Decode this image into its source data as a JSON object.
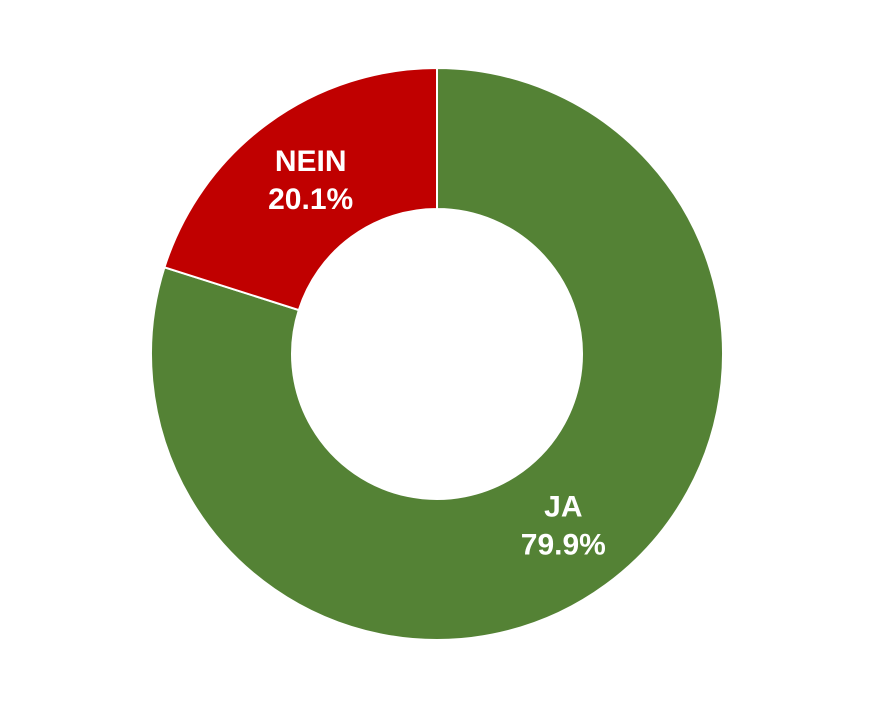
{
  "chart_data": {
    "type": "donut",
    "categories": [
      "JA",
      "NEIN"
    ],
    "values": [
      79.9,
      20.1
    ],
    "value_labels": [
      "79.9%",
      "20.1%"
    ],
    "colors": [
      "#548235",
      "#c00000"
    ]
  }
}
